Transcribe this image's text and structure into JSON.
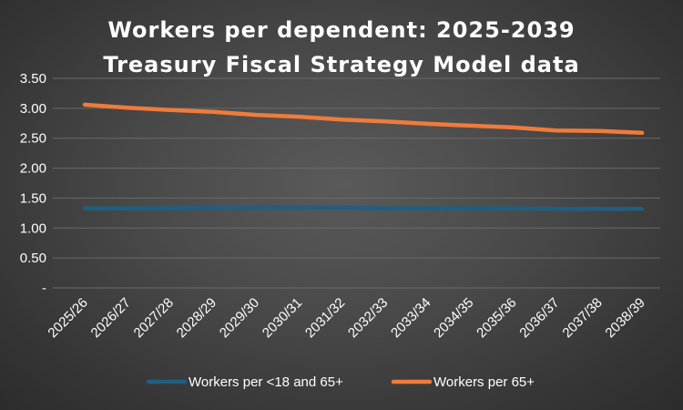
{
  "chart_data": {
    "type": "line",
    "title": "Workers per dependent: 2025-2039",
    "subtitle": "Treasury Fiscal Strategy Model data",
    "categories": [
      "2025/26",
      "2026/27",
      "2027/28",
      "2028/29",
      "2029/30",
      "2030/31",
      "2031/32",
      "2032/33",
      "2033/34",
      "2034/35",
      "2035/36",
      "2036/37",
      "2037/38",
      "2038/39"
    ],
    "y_ticks": [
      "-",
      "0.50",
      "1.00",
      "1.50",
      "2.00",
      "2.50",
      "3.00",
      "3.50"
    ],
    "ylim": [
      0,
      3.5
    ],
    "grid": true,
    "legend_position": "bottom",
    "series": [
      {
        "name": "Workers per <18 and 65+",
        "color": "#1f5f80",
        "values": [
          1.33,
          1.33,
          1.33,
          1.34,
          1.34,
          1.34,
          1.34,
          1.33,
          1.33,
          1.33,
          1.33,
          1.32,
          1.32,
          1.32
        ]
      },
      {
        "name": "Workers per 65+",
        "color": "#f07b3a",
        "values": [
          3.06,
          3.01,
          2.97,
          2.94,
          2.89,
          2.86,
          2.81,
          2.78,
          2.74,
          2.71,
          2.68,
          2.63,
          2.62,
          2.59
        ]
      }
    ]
  }
}
